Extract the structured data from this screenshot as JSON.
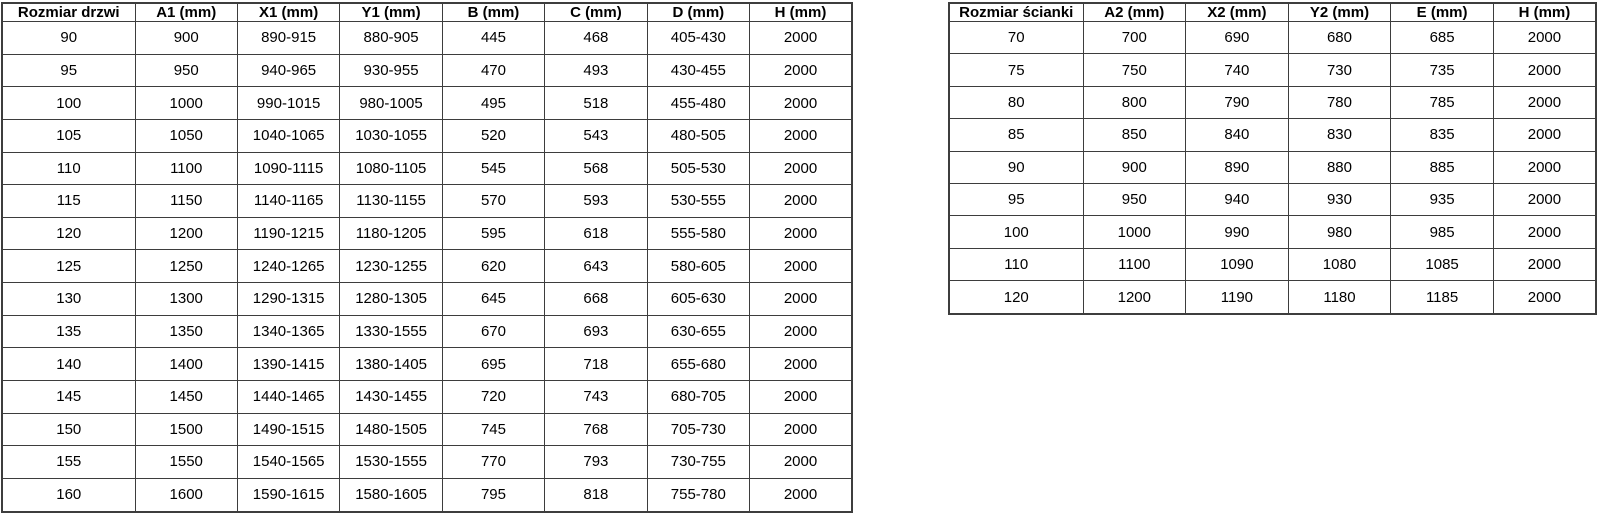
{
  "door_table": {
    "name": "door-size-table",
    "headers": [
      "Rozmiar drzwi",
      "A1 (mm)",
      "X1 (mm)",
      "Y1 (mm)",
      "B (mm)",
      "C (mm)",
      "D (mm)",
      "H (mm)"
    ],
    "rows": [
      [
        "90",
        "900",
        "890-915",
        "880-905",
        "445",
        "468",
        "405-430",
        "2000"
      ],
      [
        "95",
        "950",
        "940-965",
        "930-955",
        "470",
        "493",
        "430-455",
        "2000"
      ],
      [
        "100",
        "1000",
        "990-1015",
        "980-1005",
        "495",
        "518",
        "455-480",
        "2000"
      ],
      [
        "105",
        "1050",
        "1040-1065",
        "1030-1055",
        "520",
        "543",
        "480-505",
        "2000"
      ],
      [
        "110",
        "1100",
        "1090-1115",
        "1080-1105",
        "545",
        "568",
        "505-530",
        "2000"
      ],
      [
        "115",
        "1150",
        "1140-1165",
        "1130-1155",
        "570",
        "593",
        "530-555",
        "2000"
      ],
      [
        "120",
        "1200",
        "1190-1215",
        "1180-1205",
        "595",
        "618",
        "555-580",
        "2000"
      ],
      [
        "125",
        "1250",
        "1240-1265",
        "1230-1255",
        "620",
        "643",
        "580-605",
        "2000"
      ],
      [
        "130",
        "1300",
        "1290-1315",
        "1280-1305",
        "645",
        "668",
        "605-630",
        "2000"
      ],
      [
        "135",
        "1350",
        "1340-1365",
        "1330-1555",
        "670",
        "693",
        "630-655",
        "2000"
      ],
      [
        "140",
        "1400",
        "1390-1415",
        "1380-1405",
        "695",
        "718",
        "655-680",
        "2000"
      ],
      [
        "145",
        "1450",
        "1440-1465",
        "1430-1455",
        "720",
        "743",
        "680-705",
        "2000"
      ],
      [
        "150",
        "1500",
        "1490-1515",
        "1480-1505",
        "745",
        "768",
        "705-730",
        "2000"
      ],
      [
        "155",
        "1550",
        "1540-1565",
        "1530-1555",
        "770",
        "793",
        "730-755",
        "2000"
      ],
      [
        "160",
        "1600",
        "1590-1615",
        "1580-1605",
        "795",
        "818",
        "755-780",
        "2000"
      ]
    ]
  },
  "wall_table": {
    "name": "wall-size-table",
    "headers": [
      "Rozmiar ścianki",
      "A2 (mm)",
      "X2 (mm)",
      "Y2 (mm)",
      "E (mm)",
      "H (mm)"
    ],
    "rows": [
      [
        "70",
        "700",
        "690",
        "680",
        "685",
        "2000"
      ],
      [
        "75",
        "750",
        "740",
        "730",
        "735",
        "2000"
      ],
      [
        "80",
        "800",
        "790",
        "780",
        "785",
        "2000"
      ],
      [
        "85",
        "850",
        "840",
        "830",
        "835",
        "2000"
      ],
      [
        "90",
        "900",
        "890",
        "880",
        "885",
        "2000"
      ],
      [
        "95",
        "950",
        "940",
        "930",
        "935",
        "2000"
      ],
      [
        "100",
        "1000",
        "990",
        "980",
        "985",
        "2000"
      ],
      [
        "110",
        "1100",
        "1090",
        "1080",
        "1085",
        "2000"
      ],
      [
        "120",
        "1200",
        "1190",
        "1180",
        "1185",
        "2000"
      ]
    ]
  },
  "colors": {
    "background": "#ffffff",
    "border": "#3d3d3d",
    "text": "#000000"
  }
}
